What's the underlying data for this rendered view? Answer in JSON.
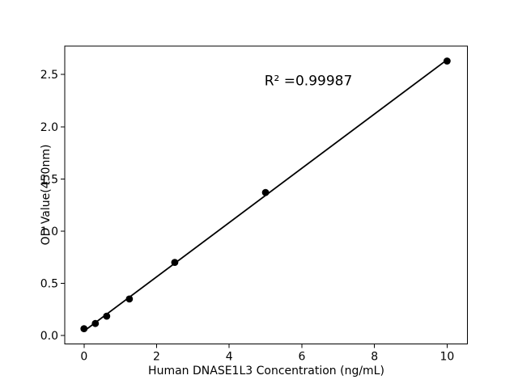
{
  "figure": {
    "background": "#ffffff",
    "text_color": "#000000"
  },
  "chart_data": {
    "type": "scatter",
    "title": "",
    "xlabel": "Human DNASE1L3 Concentration (ng/mL)",
    "ylabel": "OD Value(450nm)",
    "x": [
      0,
      0.3125,
      0.625,
      1.25,
      2.5,
      5,
      10
    ],
    "y": [
      0.065,
      0.115,
      0.185,
      0.35,
      0.7,
      1.37,
      2.63
    ],
    "fit_line": {
      "x": [
        0,
        10
      ],
      "y": [
        0.042,
        2.642
      ]
    },
    "annotation": {
      "text": "R² =0.99987",
      "r_squared": 0.99987
    },
    "xlim": [
      -0.53,
      10.56
    ],
    "ylim": [
      -0.081,
      2.773
    ],
    "xticks": {
      "values": [
        0,
        2,
        4,
        6,
        8,
        10
      ],
      "labels": [
        "0",
        "2",
        "4",
        "6",
        "8",
        "10"
      ]
    },
    "yticks": {
      "values": [
        0,
        0.5,
        1,
        1.5,
        2,
        2.5
      ],
      "labels": [
        "0.0",
        "0.5",
        "1.0",
        "1.5",
        "2.0",
        "2.5"
      ]
    },
    "grid": false,
    "legend": null,
    "marker_color": "#000000",
    "line_color": "#000000",
    "spine_color": "#000000"
  }
}
